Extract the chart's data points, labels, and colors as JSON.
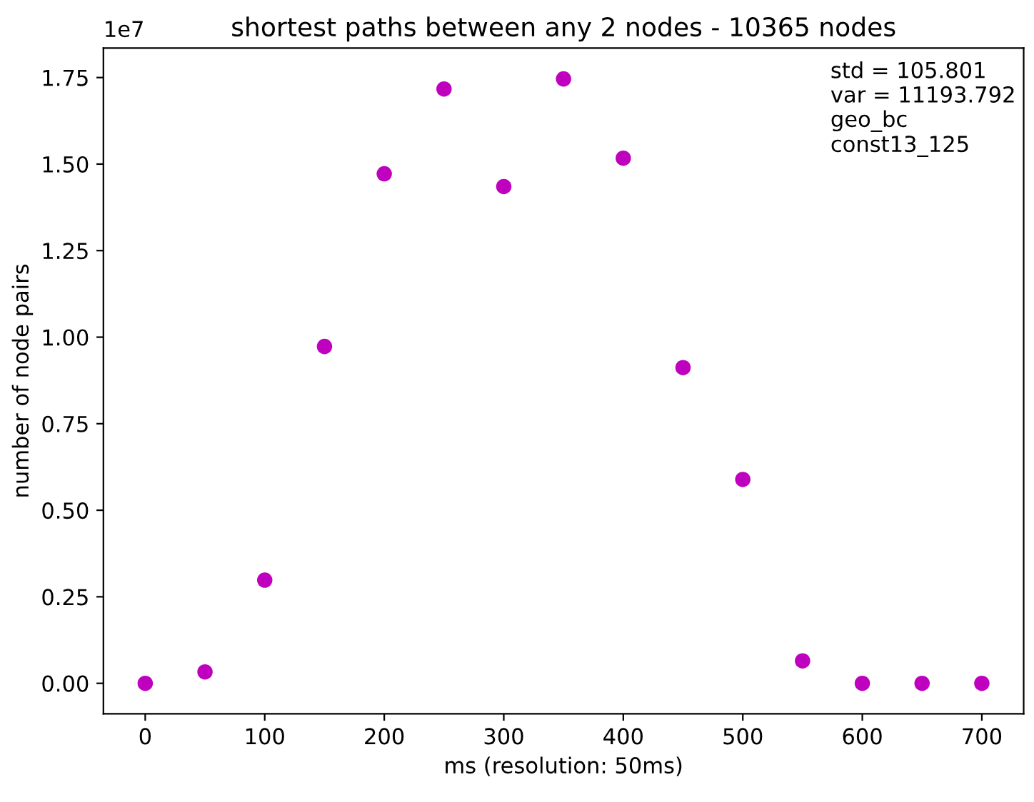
{
  "chart_data": {
    "type": "scatter",
    "title": "shortest paths between any 2 nodes - 10365 nodes",
    "xlabel": "ms (resolution: 50ms)",
    "ylabel": "number of node pairs",
    "x": [
      0,
      50,
      100,
      150,
      200,
      250,
      300,
      350,
      400,
      450,
      500,
      550,
      600,
      650,
      700
    ],
    "series": [
      {
        "color": "#bf00bf",
        "values": [
          0,
          0.033,
          0.298,
          0.973,
          1.472,
          1.717,
          1.435,
          1.746,
          1.517,
          0.912,
          0.589,
          0.065,
          0,
          0,
          0
        ]
      }
    ],
    "marker": "circle",
    "xlim": [
      -35,
      735
    ],
    "xticks": [
      0,
      100,
      200,
      300,
      400,
      500,
      600,
      700
    ],
    "ylim": [
      -0.088,
      1.835
    ],
    "yticks": [
      {
        "value": 0,
        "label": "0.00"
      },
      {
        "value": 0.25,
        "label": "0.25"
      },
      {
        "value": 0.5,
        "label": "0.50"
      },
      {
        "value": 0.75,
        "label": "0.75"
      },
      {
        "value": 1,
        "label": "1.00"
      },
      {
        "value": 1.25,
        "label": "1.25"
      },
      {
        "value": 1.5,
        "label": "1.50"
      },
      {
        "value": 1.75,
        "label": "1.75"
      }
    ],
    "annotations": [
      "1e7",
      "std = 105.801\nvar = 11193.792\ngeo_bc\nconst13_125"
    ],
    "grid": false,
    "legend": false
  }
}
